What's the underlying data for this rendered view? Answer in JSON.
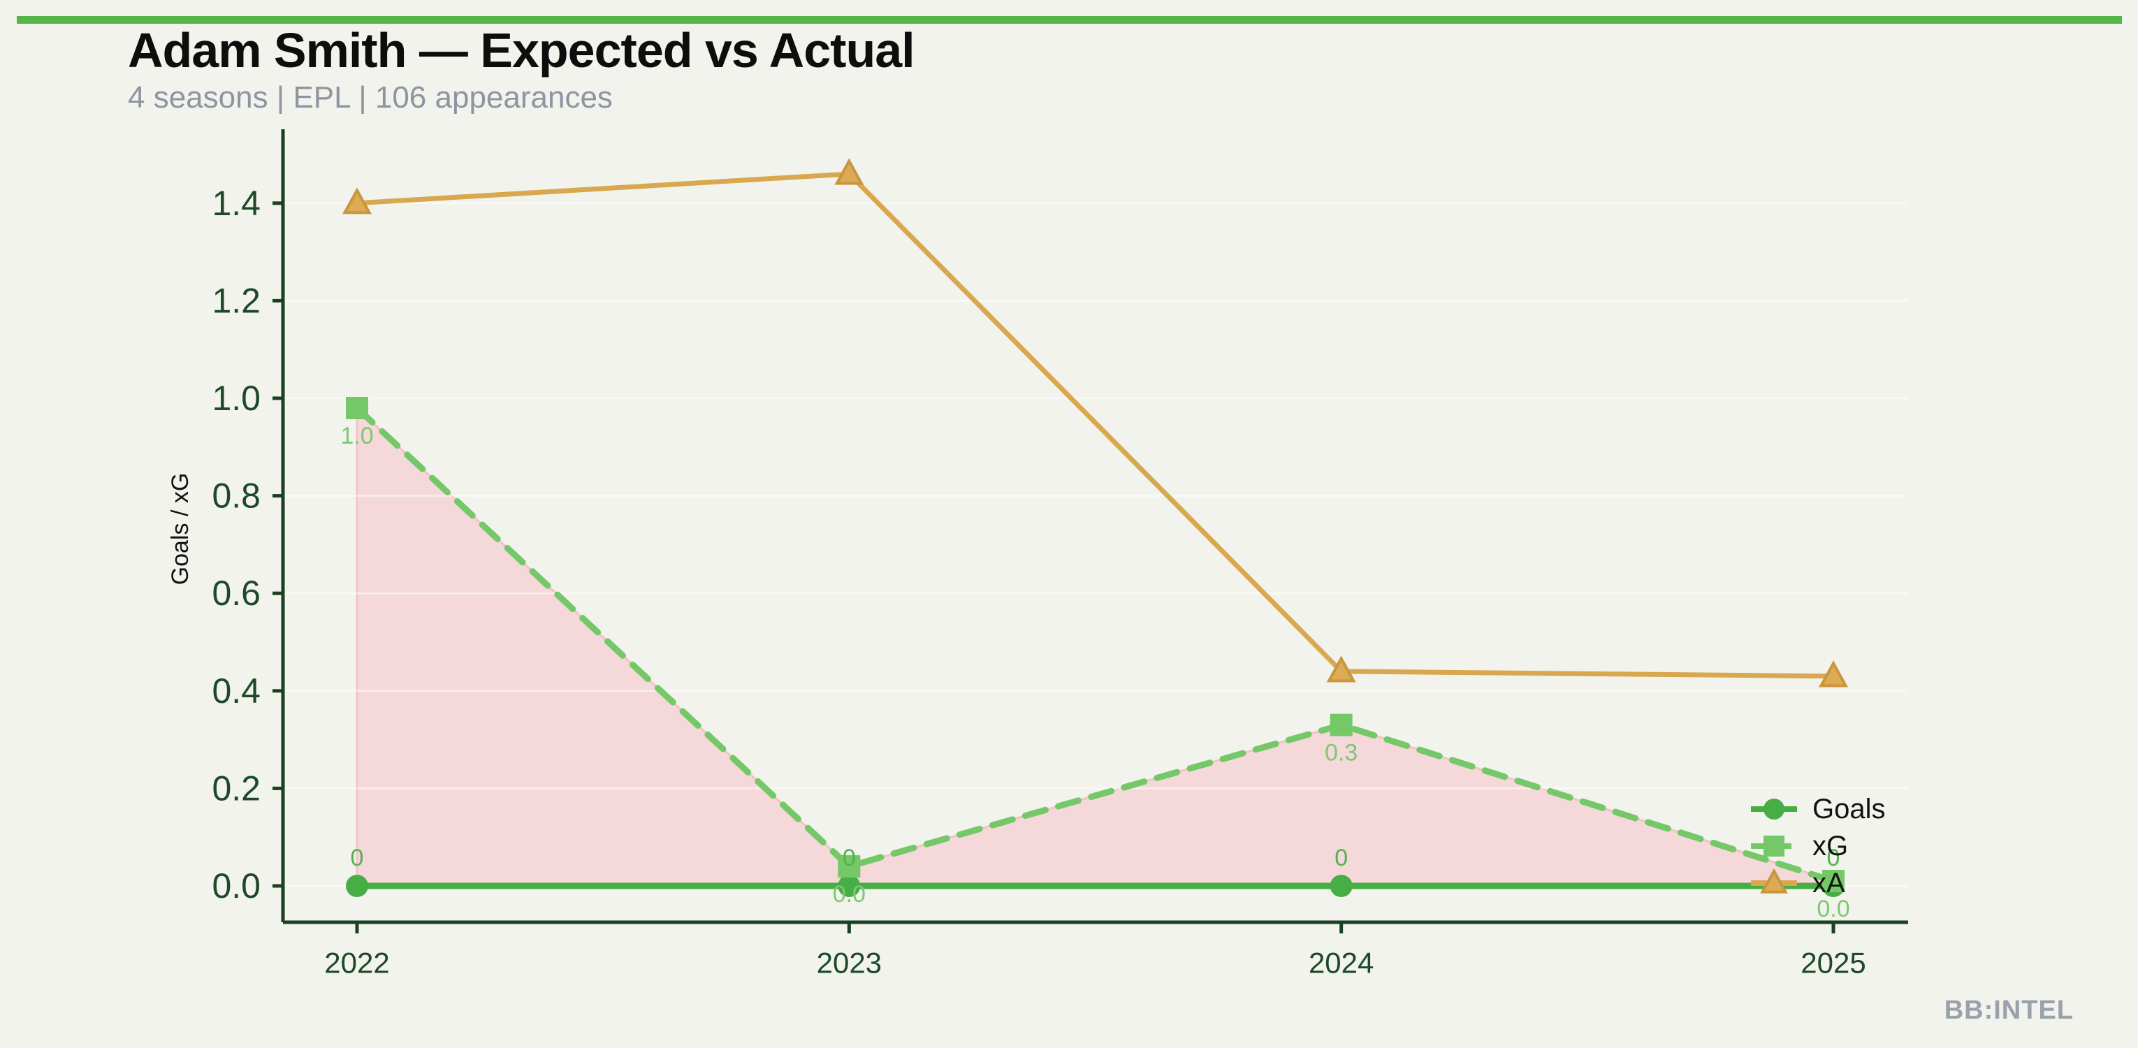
{
  "page": {
    "background_color": "#f2f3ec",
    "accent_bar_color": "#56b54a"
  },
  "header": {
    "title": "Adam Smith — Expected vs Actual",
    "subtitle": "4 seasons | EPL | 106 appearances"
  },
  "watermark": "BB:INTEL",
  "chart_data": {
    "type": "line",
    "title": "Adam Smith — Expected vs Actual",
    "x": [
      "2022",
      "2023",
      "2024",
      "2025"
    ],
    "series": [
      {
        "name": "Goals",
        "values": [
          0,
          0,
          0,
          0
        ],
        "labels": [
          "0",
          "0",
          "0",
          "0"
        ],
        "label_position": "above",
        "color": "#47ad45",
        "label_color": "#53b24d",
        "marker": "circle",
        "line_style": "solid"
      },
      {
        "name": "xG",
        "values": [
          0.98,
          0.04,
          0.33,
          0.01
        ],
        "labels": [
          "1.0",
          "0.0",
          "0.3",
          "0.0"
        ],
        "label_position": "below",
        "color": "#74c868",
        "label_color": "#7cc873",
        "marker": "square",
        "line_style": "dashed"
      },
      {
        "name": "xA",
        "values": [
          1.4,
          1.46,
          0.44,
          0.43
        ],
        "labels": null,
        "color": "#d9a84e",
        "marker": "triangle",
        "marker_fill": "#ddab55",
        "marker_edge": "#c8963e",
        "line_style": "solid"
      }
    ],
    "fill_between": {
      "upper": "xG",
      "lower": "Goals",
      "fill_color": "#f5d8d9",
      "edge_color": "#f2c3c5"
    },
    "ylabel": "Goals / xG",
    "xlabel": "",
    "yticks": [
      "0.0",
      "0.2",
      "0.4",
      "0.6",
      "0.8",
      "1.0",
      "1.2",
      "1.4"
    ],
    "ytick_values": [
      0,
      0.2,
      0.4,
      0.6,
      0.8,
      1.0,
      1.2,
      1.4
    ],
    "ylim": [
      -0.074,
      1.545
    ],
    "grid": true,
    "grid_color": "#ffffff",
    "axis_color": "#1b4122",
    "tick_label_color": "#1d4929",
    "legend": {
      "position": "lower right",
      "entries": [
        "Goals",
        "xG",
        "xA"
      ]
    }
  }
}
